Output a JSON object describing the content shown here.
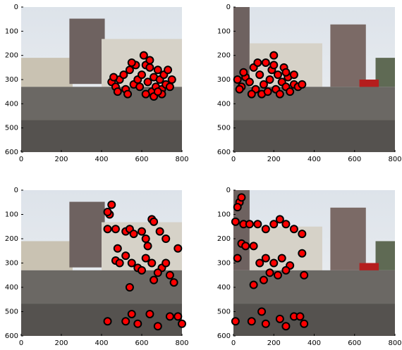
{
  "chart_data": [
    {
      "type": "scatter",
      "color": "#ff0000",
      "xlim": [
        0,
        800
      ],
      "ylim": [
        600,
        0
      ],
      "xticks": [
        0,
        200,
        400,
        600,
        800
      ],
      "yticks": [
        0,
        100,
        200,
        300,
        400,
        500,
        600
      ],
      "x": [
        450,
        470,
        490,
        510,
        520,
        540,
        560,
        580,
        600,
        610,
        620,
        630,
        640,
        650,
        660,
        670,
        680,
        690,
        700,
        710,
        720,
        730,
        740,
        750,
        480,
        530,
        570,
        620,
        660,
        700,
        460,
        590,
        640,
        550,
        680
      ],
      "values": [
        310,
        330,
        300,
        280,
        340,
        260,
        320,
        300,
        280,
        200,
        240,
        310,
        220,
        350,
        290,
        330,
        260,
        300,
        340,
        280,
        320,
        260,
        330,
        300,
        350,
        360,
        240,
        360,
        370,
        360,
        290,
        330,
        250,
        230,
        350
      ]
    },
    {
      "type": "scatter",
      "color": "#ff0000",
      "xlim": [
        0,
        800
      ],
      "ylim": [
        600,
        0
      ],
      "xticks": [
        0,
        200,
        400,
        600,
        800
      ],
      "yticks": [
        0,
        100,
        200,
        300,
        400,
        500,
        600
      ],
      "x": [
        20,
        40,
        60,
        80,
        100,
        110,
        130,
        150,
        160,
        180,
        190,
        200,
        210,
        220,
        240,
        250,
        260,
        270,
        280,
        300,
        320,
        340,
        90,
        140,
        230,
        50,
        170,
        260,
        120,
        200,
        30,
        300
      ],
      "values": [
        300,
        330,
        290,
        310,
        250,
        340,
        280,
        320,
        230,
        300,
        260,
        200,
        340,
        280,
        310,
        250,
        330,
        290,
        350,
        320,
        330,
        320,
        360,
        360,
        360,
        270,
        350,
        270,
        230,
        240,
        340,
        280
      ]
    },
    {
      "type": "scatter",
      "color": "#ff0000",
      "xlim": [
        0,
        800
      ],
      "ylim": [
        600,
        0
      ],
      "xticks": [
        0,
        200,
        400,
        600,
        800
      ],
      "yticks": [
        0,
        100,
        200,
        300,
        400,
        500,
        600
      ],
      "x": [
        440,
        450,
        430,
        430,
        470,
        480,
        520,
        540,
        560,
        600,
        620,
        650,
        660,
        690,
        720,
        780,
        630,
        470,
        490,
        520,
        550,
        580,
        620,
        650,
        700,
        740,
        760,
        540,
        430,
        520,
        550,
        580,
        640,
        680,
        740,
        780,
        800,
        600,
        680,
        720,
        660
      ],
      "values": [
        100,
        60,
        90,
        160,
        160,
        240,
        170,
        160,
        180,
        170,
        200,
        120,
        130,
        170,
        200,
        240,
        230,
        290,
        300,
        270,
        300,
        320,
        280,
        300,
        320,
        350,
        380,
        400,
        540,
        540,
        510,
        550,
        510,
        560,
        520,
        520,
        550,
        330,
        340,
        300,
        370
      ]
    },
    {
      "type": "scatter",
      "color": "#ff0000",
      "xlim": [
        0,
        800
      ],
      "ylim": [
        600,
        0
      ],
      "xticks": [
        0,
        200,
        400,
        600,
        800
      ],
      "yticks": [
        0,
        100,
        200,
        300,
        400,
        500,
        600
      ],
      "x": [
        30,
        40,
        20,
        10,
        50,
        80,
        120,
        160,
        200,
        230,
        260,
        300,
        340,
        20,
        40,
        60,
        100,
        130,
        160,
        200,
        240,
        280,
        340,
        350,
        100,
        10,
        90,
        140,
        160,
        230,
        260,
        300,
        330,
        350,
        180,
        220,
        260,
        150
      ],
      "values": [
        50,
        30,
        70,
        130,
        140,
        140,
        140,
        160,
        140,
        120,
        140,
        160,
        180,
        280,
        220,
        230,
        230,
        300,
        280,
        300,
        280,
        310,
        260,
        350,
        390,
        540,
        540,
        500,
        550,
        530,
        560,
        520,
        520,
        550,
        340,
        350,
        330,
        370
      ]
    }
  ]
}
